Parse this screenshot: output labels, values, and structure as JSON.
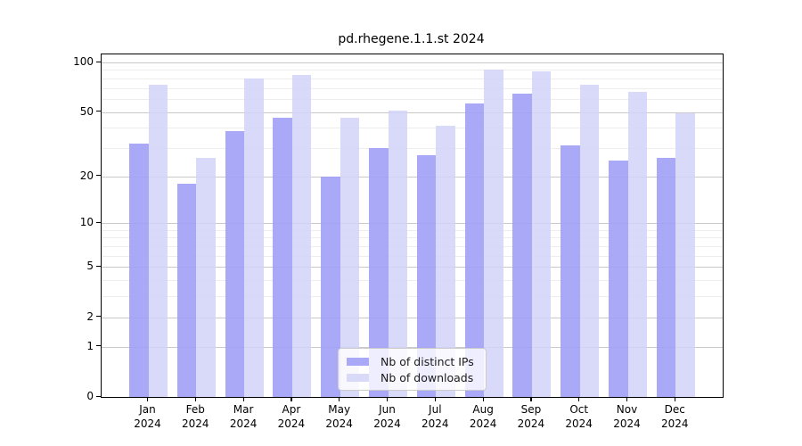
{
  "chart_data": {
    "type": "bar",
    "title": "pd.rhegene.1.1.st 2024",
    "categories": [
      "Jan",
      "Feb",
      "Mar",
      "Apr",
      "May",
      "Jun",
      "Jul",
      "Aug",
      "Sep",
      "Oct",
      "Nov",
      "Dec"
    ],
    "x_year_label": "2024",
    "series": [
      {
        "name": "Nb of distinct IPs",
        "color": "#a9a9f7",
        "values": [
          32,
          18,
          38,
          46,
          20,
          30,
          27,
          56,
          65,
          31,
          25,
          26
        ]
      },
      {
        "name": "Nb of downloads",
        "color": "#d9d9f8",
        "values": [
          73,
          26,
          80,
          84,
          46,
          51,
          41,
          90,
          88,
          73,
          66,
          49
        ]
      }
    ],
    "yticks": [
      0,
      1,
      2,
      5,
      10,
      20,
      50,
      100
    ],
    "minor_gridlines": [
      3,
      4,
      6,
      7,
      8,
      9,
      30,
      40,
      60,
      70,
      80,
      90
    ],
    "scale": "log10(1+x)",
    "ylim": [
      0,
      101
    ],
    "grid": true,
    "legend_position": "bottom-center"
  }
}
